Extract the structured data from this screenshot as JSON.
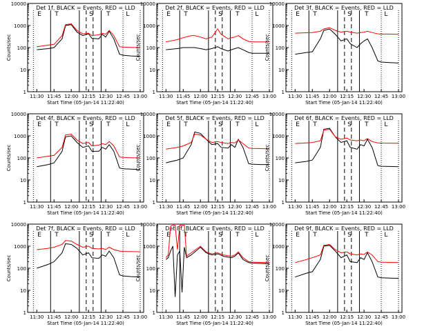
{
  "figure": {
    "ylabel": "Counts/sec",
    "xlabel": "Start Time (05-Jan-14 11:22:40)",
    "x_ticks": [
      "11:30",
      "11:45",
      "12:00",
      "12:15",
      "12:30",
      "12:45",
      "13:00"
    ],
    "y_ticks": [
      "1",
      "10",
      "100",
      "1000",
      "10000"
    ],
    "colors": {
      "events": "#000000",
      "lld": "#ff0000"
    }
  },
  "chart_data": [
    {
      "type": "line",
      "title": "Det 1f, BLACK = Events, RED = LLD",
      "marker_letters": [
        "E",
        "T",
        "S",
        "T",
        "L"
      ],
      "x": [
        "11:30",
        "11:40",
        "11:45",
        "11:52",
        "11:55",
        "12:00",
        "12:05",
        "12:10",
        "12:15",
        "12:18",
        "12:24",
        "12:27",
        "12:30",
        "12:33",
        "12:37",
        "12:42",
        "12:45",
        "12:52",
        "13:00"
      ],
      "series": [
        {
          "name": "Events",
          "values": [
            80,
            90,
            100,
            250,
            1000,
            1100,
            500,
            350,
            420,
            260,
            250,
            400,
            300,
            550,
            250,
            50,
            45,
            42,
            40
          ]
        },
        {
          "name": "LLD",
          "values": [
            110,
            130,
            140,
            350,
            1100,
            1200,
            600,
            420,
            450,
            350,
            380,
            450,
            400,
            600,
            350,
            110,
            105,
            102,
            100
          ]
        }
      ]
    },
    {
      "type": "line",
      "title": "Det 2f, BLACK = Events, RED = LLD",
      "marker_letters": [
        "E",
        "T",
        "S",
        "T",
        "L"
      ],
      "x": [
        "11:30",
        "11:40",
        "11:45",
        "11:52",
        "11:55",
        "12:00",
        "12:05",
        "12:10",
        "12:15",
        "12:18",
        "12:24",
        "12:27",
        "12:30",
        "12:33",
        "12:37",
        "12:42",
        "12:45",
        "12:52",
        "13:00"
      ],
      "series": [
        {
          "name": "Events",
          "values": [
            80,
            90,
            100,
            100,
            100,
            90,
            80,
            90,
            110,
            90,
            70,
            80,
            90,
            100,
            80,
            60,
            55,
            55,
            55
          ]
        },
        {
          "name": "LLD",
          "values": [
            180,
            230,
            280,
            350,
            350,
            300,
            250,
            300,
            700,
            400,
            250,
            280,
            300,
            350,
            250,
            190,
            180,
            180,
            180
          ]
        }
      ]
    },
    {
      "type": "line",
      "title": "Det 3f, BLACK = Events, RED = LLD",
      "marker_letters": [
        "E",
        "T",
        "S",
        "T",
        "L"
      ],
      "x": [
        "11:30",
        "11:40",
        "11:45",
        "11:52",
        "11:55",
        "12:00",
        "12:05",
        "12:10",
        "12:15",
        "12:18",
        "12:24",
        "12:27",
        "12:30",
        "12:33",
        "12:37",
        "12:42",
        "12:45",
        "12:52",
        "13:00"
      ],
      "series": [
        {
          "name": "Events",
          "values": [
            50,
            60,
            65,
            250,
            600,
            700,
            400,
            200,
            250,
            150,
            100,
            150,
            200,
            250,
            100,
            25,
            22,
            21,
            20
          ]
        },
        {
          "name": "LLD",
          "values": [
            450,
            470,
            480,
            550,
            700,
            800,
            600,
            500,
            550,
            500,
            450,
            480,
            500,
            550,
            480,
            420,
            410,
            410,
            400
          ]
        }
      ]
    },
    {
      "type": "line",
      "title": "Det 4f, BLACK = Events, RED = LLD",
      "marker_letters": [
        "E",
        "T",
        "S",
        "T",
        "L"
      ],
      "x": [
        "11:30",
        "11:40",
        "11:45",
        "11:52",
        "11:55",
        "12:00",
        "12:05",
        "12:10",
        "12:15",
        "12:18",
        "12:24",
        "12:27",
        "12:30",
        "12:33",
        "12:37",
        "12:42",
        "12:45",
        "12:52",
        "13:00"
      ],
      "series": [
        {
          "name": "Events",
          "values": [
            40,
            50,
            60,
            200,
            900,
            1000,
            500,
            300,
            350,
            200,
            200,
            300,
            250,
            400,
            200,
            35,
            32,
            31,
            30
          ]
        },
        {
          "name": "LLD",
          "values": [
            100,
            120,
            130,
            300,
            1100,
            1200,
            650,
            450,
            500,
            350,
            380,
            450,
            400,
            550,
            350,
            110,
            105,
            102,
            100
          ]
        }
      ]
    },
    {
      "type": "line",
      "title": "Det 5f, BLACK = Events, RED = LLD",
      "marker_letters": [
        "E",
        "T",
        "S",
        "T",
        "L"
      ],
      "x": [
        "11:30",
        "11:40",
        "11:45",
        "11:52",
        "11:55",
        "12:00",
        "12:05",
        "12:10",
        "12:15",
        "12:18",
        "12:24",
        "12:27",
        "12:30",
        "12:33",
        "12:37",
        "12:42",
        "12:45",
        "12:52",
        "13:00"
      ],
      "series": [
        {
          "name": "Events",
          "values": [
            60,
            80,
            100,
            400,
            1500,
            1300,
            700,
            400,
            450,
            300,
            280,
            400,
            300,
            700,
            300,
            55,
            52,
            50,
            50
          ]
        },
        {
          "name": "LLD",
          "values": [
            250,
            300,
            350,
            500,
            1200,
            1100,
            700,
            500,
            550,
            500,
            450,
            500,
            480,
            650,
            450,
            280,
            270,
            265,
            260
          ]
        }
      ]
    },
    {
      "type": "line",
      "title": "Det 6f, BLACK = Events, RED = LLD",
      "marker_letters": [
        "E",
        "T",
        "S",
        "T",
        "L"
      ],
      "x": [
        "11:30",
        "11:40",
        "11:45",
        "11:52",
        "11:55",
        "12:00",
        "12:05",
        "12:10",
        "12:15",
        "12:18",
        "12:24",
        "12:27",
        "12:30",
        "12:33",
        "12:37",
        "12:42",
        "12:45",
        "12:52",
        "13:00"
      ],
      "series": [
        {
          "name": "Events",
          "values": [
            60,
            70,
            80,
            300,
            2000,
            2200,
            900,
            500,
            600,
            300,
            250,
            400,
            350,
            700,
            300,
            45,
            42,
            41,
            40
          ]
        },
        {
          "name": "LLD",
          "values": [
            450,
            480,
            500,
            600,
            1800,
            2000,
            900,
            700,
            800,
            650,
            600,
            650,
            600,
            750,
            550,
            480,
            470,
            465,
            460
          ]
        }
      ]
    },
    {
      "type": "line",
      "title": "Det 7f, BLACK = Events, RED = LLD",
      "marker_letters": [
        "E",
        "T",
        "S",
        "T",
        "L"
      ],
      "x": [
        "11:30",
        "11:40",
        "11:45",
        "11:52",
        "11:55",
        "12:00",
        "12:05",
        "12:10",
        "12:15",
        "12:18",
        "12:24",
        "12:27",
        "12:30",
        "12:33",
        "12:37",
        "12:42",
        "12:45",
        "12:52",
        "13:00"
      ],
      "series": [
        {
          "name": "Events",
          "values": [
            100,
            150,
            200,
            500,
            1300,
            1200,
            800,
            400,
            500,
            300,
            280,
            400,
            350,
            600,
            300,
            50,
            45,
            42,
            40
          ]
        },
        {
          "name": "LLD",
          "values": [
            700,
            800,
            900,
            1200,
            1800,
            1700,
            1200,
            900,
            1000,
            800,
            750,
            800,
            700,
            900,
            700,
            600,
            580,
            570,
            560
          ]
        }
      ]
    },
    {
      "type": "line",
      "title": "Det 8f, BLACK = Events, RED = LLD",
      "marker_letters": [
        "E",
        "T",
        "S",
        "T",
        "L"
      ],
      "x": [
        "11:30",
        "11:32",
        "11:34",
        "11:36",
        "11:38",
        "11:40",
        "11:42",
        "11:44",
        "11:46",
        "11:48",
        "11:52",
        "12:00",
        "12:05",
        "12:10",
        "12:15",
        "12:20",
        "12:27",
        "12:30",
        "12:33",
        "12:37",
        "12:42",
        "12:45",
        "12:52",
        "13:00"
      ],
      "series": [
        {
          "name": "Events",
          "values": [
            250,
            300,
            600,
            1000,
            5,
            400,
            600,
            8,
            900,
            300,
            400,
            900,
            500,
            400,
            450,
            350,
            300,
            350,
            500,
            250,
            180,
            170,
            165,
            160
          ]
        },
        {
          "name": "LLD",
          "values": [
            300,
            400,
            8000,
            9000,
            9000,
            700,
            9000,
            9000,
            9000,
            350,
            500,
            1000,
            550,
            450,
            500,
            400,
            350,
            400,
            550,
            300,
            200,
            190,
            185,
            180
          ]
        }
      ]
    },
    {
      "type": "line",
      "title": "Det 9f, BLACK = Events, RED = LLD",
      "marker_letters": [
        "E",
        "T",
        "S",
        "T",
        "L"
      ],
      "x": [
        "11:30",
        "11:40",
        "11:45",
        "11:52",
        "11:55",
        "12:00",
        "12:05",
        "12:10",
        "12:15",
        "12:18",
        "12:24",
        "12:27",
        "12:30",
        "12:33",
        "12:37",
        "12:42",
        "12:45",
        "12:52",
        "13:00"
      ],
      "series": [
        {
          "name": "Events",
          "values": [
            40,
            60,
            70,
            250,
            1000,
            1100,
            600,
            300,
            400,
            200,
            180,
            300,
            250,
            500,
            200,
            40,
            37,
            36,
            35
          ]
        },
        {
          "name": "LLD",
          "values": [
            180,
            250,
            300,
            400,
            1100,
            1200,
            700,
            500,
            550,
            450,
            400,
            450,
            420,
            550,
            400,
            200,
            190,
            185,
            180
          ]
        }
      ]
    }
  ]
}
